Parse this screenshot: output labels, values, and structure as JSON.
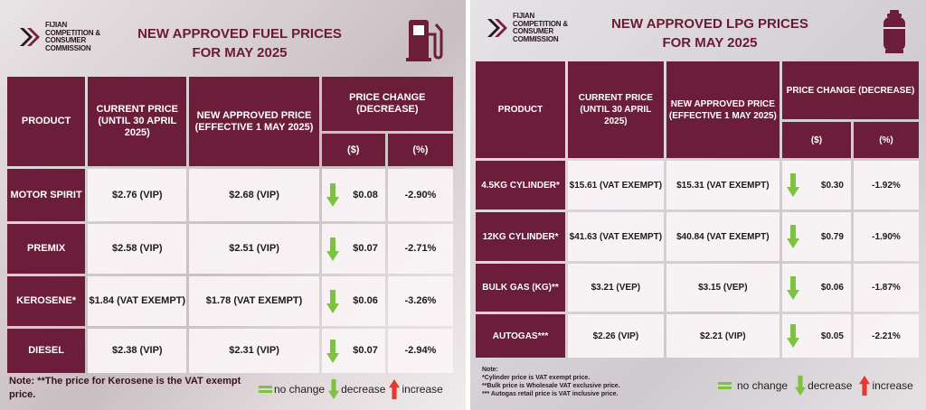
{
  "brand": {
    "lines": [
      "FIJIAN",
      "COMPETITION &",
      "CONSUMER",
      "COMMISSION"
    ]
  },
  "fuel": {
    "title_line1": "NEW APPROVED FUEL PRICES",
    "title_line2": "FOR MAY 2025",
    "icon": "fuel-pump-icon",
    "headers": {
      "product": "PRODUCT",
      "current": "CURRENT PRICE (UNTIL 30 APRIL 2025)",
      "new": "NEW APPROVED PRICE (EFFECTIVE 1 MAY 2025)",
      "change": "PRICE CHANGE (DECREASE)",
      "dollar": "($)",
      "percent": "(%)"
    },
    "rows": [
      {
        "product": "MOTOR SPIRIT",
        "current": "$2.76 (VIP)",
        "new": "$2.68 (VIP)",
        "dollar": "$0.08",
        "percent": "-2.90%"
      },
      {
        "product": "PREMIX",
        "current": "$2.58 (VIP)",
        "new": "$2.51 (VIP)",
        "dollar": "$0.07",
        "percent": "-2.71%"
      },
      {
        "product": "KEROSENE*",
        "current": "$1.84 (VAT EXEMPT)",
        "new": "$1.78 (VAT EXEMPT)",
        "dollar": "$0.06",
        "percent": "-3.26%"
      },
      {
        "product": "DIESEL",
        "current": "$2.38 (VIP)",
        "new": "$2.31 (VIP)",
        "dollar": "$0.07",
        "percent": "-2.94%"
      }
    ],
    "note": "Note: **The price for Kerosene is the VAT exempt price.",
    "legend": {
      "no_change": "no change",
      "decrease": "decrease",
      "increase": "increase"
    }
  },
  "lpg": {
    "title_line1": "NEW APPROVED LPG PRICES",
    "title_line2": "FOR MAY 2025",
    "icon": "gas-cylinder-icon",
    "headers": {
      "product": "PRODUCT",
      "current": "CURRENT PRICE (UNTIL 30 APRIL 2025)",
      "new": "NEW APPROVED PRICE (EFFECTIVE 1 MAY 2025)",
      "change": "PRICE CHANGE (DECREASE)",
      "dollar": "($)",
      "percent": "(%)"
    },
    "rows": [
      {
        "product": "4.5KG CYLINDER*",
        "current": "$15.61 (VAT EXEMPT)",
        "new": "$15.31 (VAT EXEMPT)",
        "dollar": "$0.30",
        "percent": "-1.92%"
      },
      {
        "product": "12KG CYLINDER*",
        "current": "$41.63 (VAT EXEMPT)",
        "new": "$40.84 (VAT EXEMPT)",
        "dollar": "$0.79",
        "percent": "-1.90%"
      },
      {
        "product": "BULK GAS (KG)**",
        "current": "$3.21 (VEP)",
        "new": "$3.15 (VEP)",
        "dollar": "$0.06",
        "percent": "-1.87%"
      },
      {
        "product": "AUTOGAS***",
        "current": "$2.26 (VIP)",
        "new": "$2.21 (VIP)",
        "dollar": "$0.05",
        "percent": "-2.21%"
      }
    ],
    "notes": [
      "Note:",
      "*Cylinder price is VAT exempt price.",
      "**Bulk price is Wholesale VAT exclusive price.",
      "*** Autogas retail price is VAT inclusive price."
    ],
    "legend": {
      "no_change": "no change",
      "decrease": "decrease",
      "increase": "increase"
    }
  },
  "colors": {
    "maroon": "#6b1d3a",
    "title": "#6b1a33",
    "green": "#7ec242",
    "red": "#e53a2f"
  }
}
